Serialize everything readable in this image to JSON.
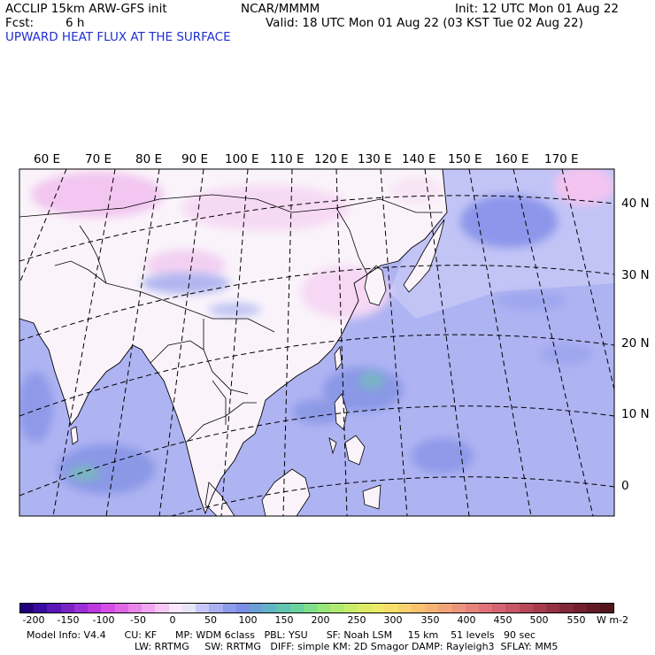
{
  "header": {
    "model": "ACCLIP 15km ARW-GFS init",
    "center": "NCAR/MMMM",
    "init": "Init: 12 UTC Mon 01 Aug 22",
    "fcst_label": "Fcst:",
    "fcst_value": "6 h",
    "valid": "Valid: 18 UTC Mon 01 Aug 22 (03 KST Tue 02 Aug 22)",
    "field_title": "UPWARD HEAT FLUX AT THE SURFACE"
  },
  "map": {
    "longitude_labels": [
      "60 E",
      "70 E",
      "80 E",
      "90 E",
      "100 E",
      "110 E",
      "120 E",
      "130 E",
      "140 E",
      "150 E",
      "160 E",
      "170 E"
    ],
    "latitude_labels": [
      "40 N",
      "30 N",
      "20 N",
      "10 N",
      "0"
    ]
  },
  "colorbar": {
    "unit": "W m-2",
    "labels": [
      "-200",
      "-150",
      "-100",
      "-50",
      "0",
      "50",
      "100",
      "150",
      "200",
      "250",
      "300",
      "350",
      "400",
      "450",
      "500",
      "550"
    ],
    "colors": [
      "#22007a",
      "#3a0aa0",
      "#5716b6",
      "#7a22c6",
      "#9b2ed6",
      "#bc3ae0",
      "#d64de6",
      "#e066e6",
      "#ea86ea",
      "#f0a6f0",
      "#f6c6f6",
      "#fbe6fb",
      "#e6e6fa",
      "#c8c8f8",
      "#aab0f2",
      "#8e9aea",
      "#7a8ee6",
      "#6aa0d6",
      "#62b4c4",
      "#62c4b2",
      "#6ad29e",
      "#7ede8a",
      "#96e67a",
      "#b0ea70",
      "#c8ec6a",
      "#dcec66",
      "#ecea66",
      "#f4e068",
      "#f8d26c",
      "#f8c270",
      "#f6b474",
      "#f2a478",
      "#ec947c",
      "#e6847c",
      "#de7478",
      "#d46470",
      "#c85666",
      "#b8485a",
      "#a63c4e",
      "#943244",
      "#82283a",
      "#722030",
      "#621a26",
      "#54161e"
    ]
  },
  "footer": {
    "line1": "Model Info: V4.4      CU: KF      MP: WDM 6class   PBL: YSU      SF: Noah LSM     15 km    51 levels   90 sec",
    "line2": "LW: RRTMG     SW: RRTMG   DIFF: simple KM: 2D Smagor DAMP: Rayleigh3  SFLAY: MM5"
  }
}
